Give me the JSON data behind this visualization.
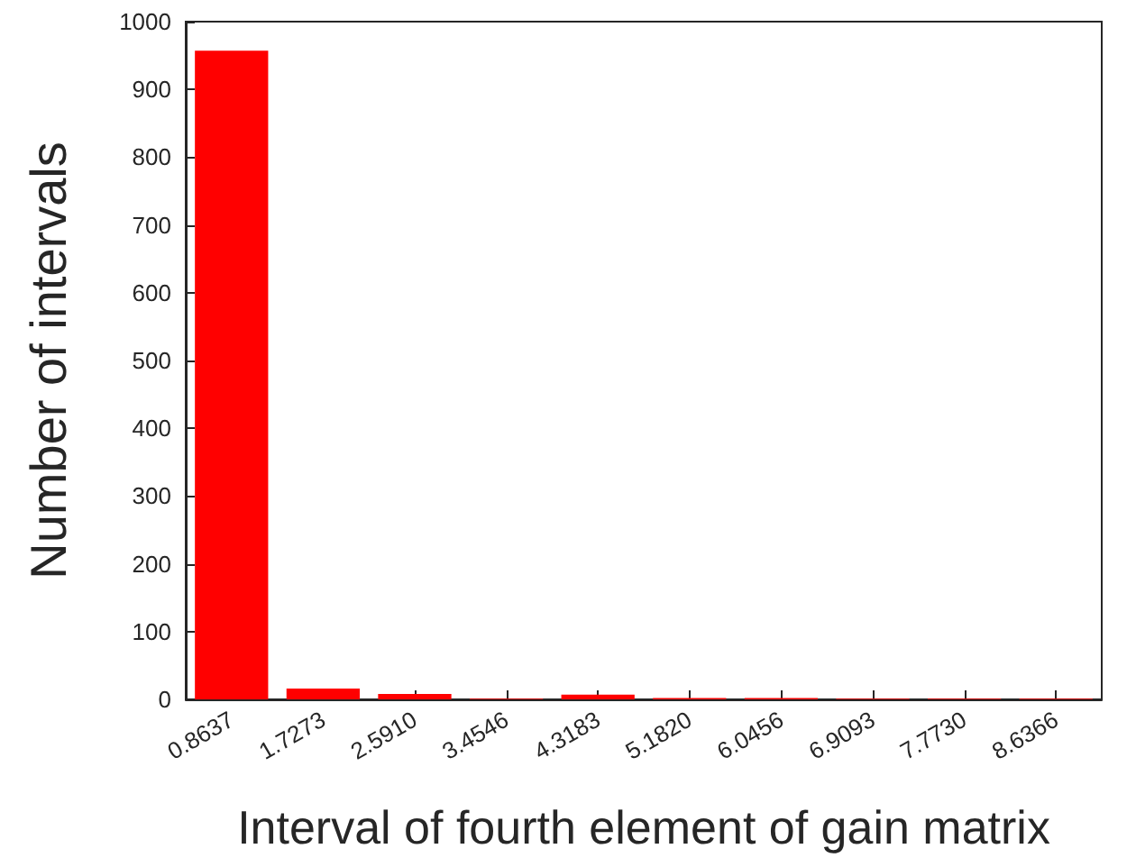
{
  "chart_data": {
    "type": "bar",
    "xlabel": "Interval of fourth element of gain matrix",
    "ylabel": "Number of intervals",
    "categories": [
      "0.8637",
      "1.7273",
      "2.5910",
      "3.4546",
      "4.3183",
      "5.1820",
      "6.0456",
      "6.9093",
      "7.7730",
      "8.6366"
    ],
    "values": [
      957,
      16,
      8,
      1,
      7,
      2,
      2,
      1,
      1,
      1
    ],
    "color": "#ff0000",
    "ylim": [
      0,
      1000
    ],
    "yticks": [
      0,
      100,
      200,
      300,
      400,
      500,
      600,
      700,
      800,
      900,
      1000
    ],
    "grid": false
  }
}
